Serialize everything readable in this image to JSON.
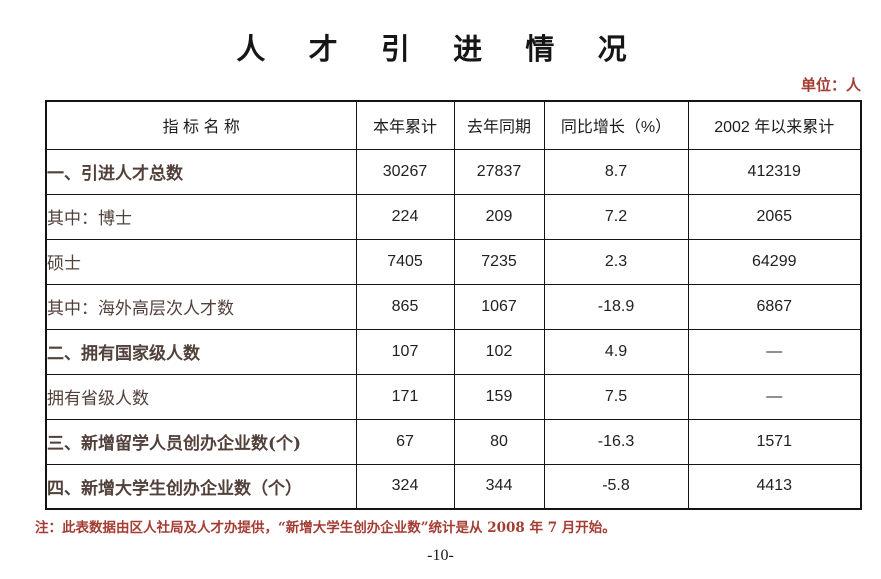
{
  "page": {
    "title": "人 才 引 进 情 况",
    "unit_label": "单位：人",
    "note": "注：此表数据由区人社局及人才办提供，“新增大学生创办企业数”统计是从 2008 年 7 月开始。",
    "page_number": "-10-"
  },
  "colors": {
    "accent_red": "#a33c32",
    "label_text": "#52403a",
    "number_text": "#212121",
    "border": "#141414"
  },
  "table": {
    "headers": [
      "指  标  名  称",
      "本年累计",
      "去年同期",
      "同比增长（%）",
      "2002 年以来累计"
    ],
    "rows": [
      {
        "label": "一、引进人才总数",
        "values": [
          "30267",
          "27837",
          "8.7",
          "412319"
        ]
      },
      {
        "label": "其中：博士",
        "values": [
          "224",
          "209",
          "7.2",
          "2065"
        ]
      },
      {
        "label": "硕士",
        "values": [
          "7405",
          "7235",
          "2.3",
          "64299"
        ]
      },
      {
        "label": "其中：海外高层次人才数",
        "values": [
          "865",
          "1067",
          "-18.9",
          "6867"
        ]
      },
      {
        "label": "二、拥有国家级人数",
        "values": [
          "107",
          "102",
          "4.9",
          "—"
        ]
      },
      {
        "label": "拥有省级人数",
        "values": [
          "171",
          "159",
          "7.5",
          "—"
        ]
      },
      {
        "label": "三、新增留学人员创办企业数(个)",
        "values": [
          "67",
          "80",
          "-16.3",
          "1571"
        ]
      },
      {
        "label": "四、新增大学生创办企业数（个）",
        "values": [
          "324",
          "344",
          "-5.8",
          "4413"
        ]
      }
    ]
  }
}
